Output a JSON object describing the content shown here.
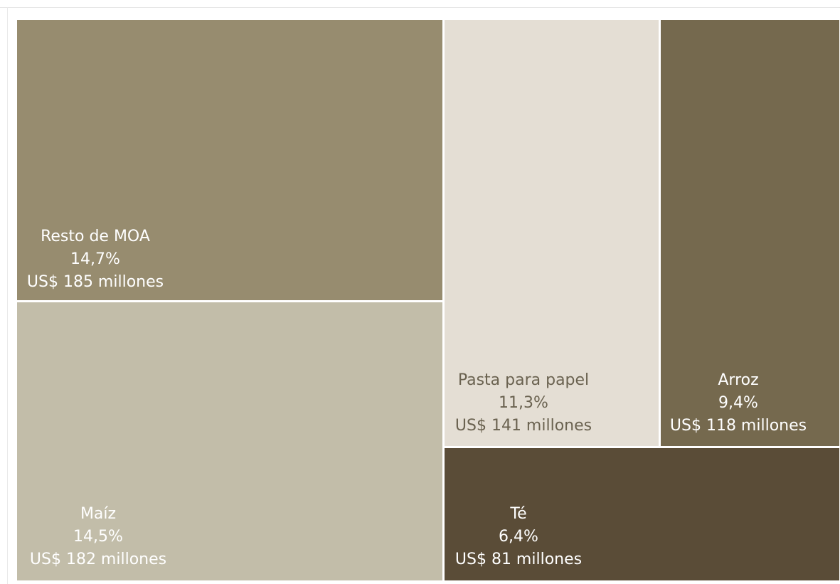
{
  "chart_data": {
    "type": "treemap",
    "units": "US$ millones",
    "items": [
      {
        "label": "Resto de MOA",
        "percent_label": "14,7%",
        "value_label": "US$ 185 millones",
        "value": 185,
        "share": 14.7,
        "color": "#978c6f",
        "text_color": "#ffffff"
      },
      {
        "label": "Maíz",
        "percent_label": "14,5%",
        "value_label": "US$ 182 millones",
        "value": 182,
        "share": 14.5,
        "color": "#c2bda9",
        "text_color": "#ffffff"
      },
      {
        "label": "Pasta para papel",
        "percent_label": "11,3%",
        "value_label": "US$ 141 millones",
        "value": 141,
        "share": 11.3,
        "color": "#e4ded4",
        "text_color": "#6a6250"
      },
      {
        "label": "Arroz",
        "percent_label": "9,4%",
        "value_label": "US$ 118 millones",
        "value": 118,
        "share": 9.4,
        "color": "#75694e",
        "text_color": "#ffffff"
      },
      {
        "label": "Té",
        "percent_label": "6,4%",
        "value_label": "US$ 81 millones",
        "value": 81,
        "share": 6.4,
        "color": "#5a4c37",
        "text_color": "#ffffff"
      }
    ]
  }
}
